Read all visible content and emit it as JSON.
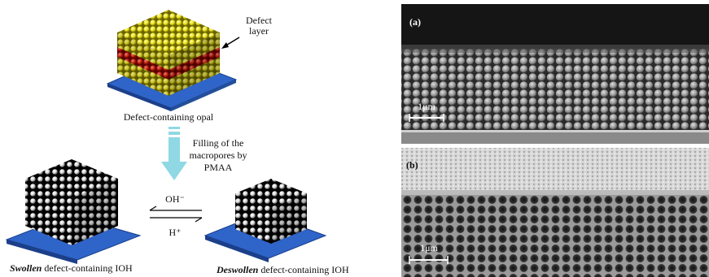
{
  "schematic": {
    "defect_label": [
      "Defect",
      "layer"
    ],
    "opal_caption": "Defect-containing opal",
    "process_label": [
      "Filling of the",
      "macropores by",
      "PMAA"
    ],
    "forward_reagent": "OH⁻",
    "reverse_reagent": "H⁺",
    "swollen_caption": {
      "emphasis": "Swollen",
      "rest": " defect-containing IOH"
    },
    "deswollen_caption": {
      "emphasis": "Deswollen",
      "rest": " defect-containing IOH"
    }
  },
  "micrographs": [
    {
      "label": "(a)",
      "scale_bar": "1μm"
    },
    {
      "label": "(b)",
      "scale_bar": "1μm"
    }
  ]
}
